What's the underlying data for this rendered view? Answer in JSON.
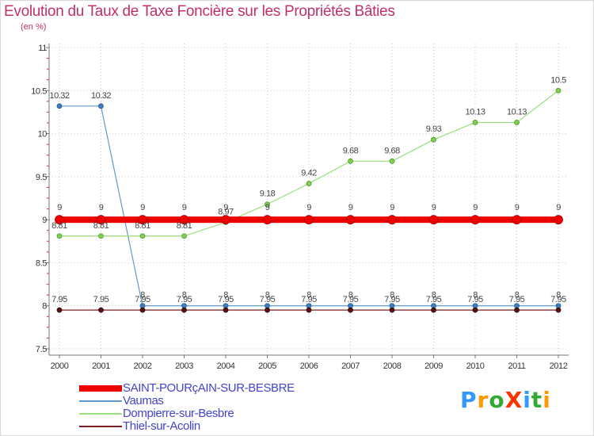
{
  "title": "Evolution du Taux de Taxe Foncière sur les Propriétés Bâties",
  "subtitle": "(en %)",
  "chart_data": {
    "type": "line",
    "title": "Evolution du Taux de Taxe Foncière sur les Propriétés Bâties",
    "ylabel": "(en %)",
    "xlabel": "",
    "categories": [
      "2000",
      "2001",
      "2002",
      "2003",
      "2004",
      "2005",
      "2006",
      "2007",
      "2008",
      "2009",
      "2010",
      "2011",
      "2012"
    ],
    "ylim": [
      7.5,
      11
    ],
    "yticks": [
      "7.5",
      "8",
      "8.5",
      "9",
      "9.5",
      "10",
      "10.5",
      "11"
    ],
    "series": [
      {
        "name": "Vaumas",
        "color": "#5b9bd5",
        "values": [
          10.32,
          10.32,
          8,
          8,
          8,
          8,
          8,
          8,
          8,
          8,
          8,
          8,
          8
        ],
        "labels": [
          "10.32",
          "10.32",
          "8",
          "8",
          "8",
          "8",
          "8",
          "8",
          "8",
          "8",
          "8",
          "8",
          "8"
        ]
      },
      {
        "name": "Dompierre-sur-Besbre",
        "color": "#99e07a",
        "values": [
          8.81,
          8.81,
          8.81,
          8.81,
          8.97,
          9.18,
          9.42,
          9.68,
          9.68,
          9.93,
          10.13,
          10.13,
          10.5
        ],
        "labels": [
          "8.81",
          "8.81",
          "8.81",
          "8.81",
          "8.97",
          "9.18",
          "9.42",
          "9.68",
          "9.68",
          "9.93",
          "10.13",
          "10.13",
          "10.5"
        ]
      },
      {
        "name": "Thiel-sur-Acolin",
        "color": "#7a2020",
        "values": [
          7.95,
          7.95,
          7.95,
          7.95,
          7.95,
          7.95,
          7.95,
          7.95,
          7.95,
          7.95,
          7.95,
          7.95,
          7.95
        ],
        "labels": [
          "7.95",
          "7.95",
          "7.95",
          "7.95",
          "7.95",
          "7.95",
          "7.95",
          "7.95",
          "7.95",
          "7.95",
          "7.95",
          "7.95",
          "7.95"
        ]
      },
      {
        "name": "SAINT-POURçAIN-SUR-BESBRE",
        "color": "#ee0000",
        "values": [
          9,
          9,
          9,
          9,
          9,
          9,
          9,
          9,
          9,
          9,
          9,
          9,
          9
        ],
        "labels": [
          "9",
          "9",
          "9",
          "9",
          "9",
          "9",
          "9",
          "9",
          "9",
          "9",
          "9",
          "9",
          "9"
        ]
      }
    ]
  },
  "legend": [
    {
      "name": "SAINT-POURçAIN-SUR-BESBRE",
      "color": "#ee0000"
    },
    {
      "name": "Vaumas",
      "color": "#5b9bd5"
    },
    {
      "name": "Dompierre-sur-Besbre",
      "color": "#99e07a"
    },
    {
      "name": "Thiel-sur-Acolin",
      "color": "#7a2020"
    }
  ],
  "logo": {
    "text": "ProXiti",
    "letters": [
      "P",
      "r",
      "o",
      "X",
      "i",
      "t",
      "i"
    ],
    "colors": [
      "#3399ff",
      "#ff9900",
      "#33aa33",
      "#ff3300",
      "#3399ff",
      "#33aa33",
      "#ff9900"
    ]
  }
}
